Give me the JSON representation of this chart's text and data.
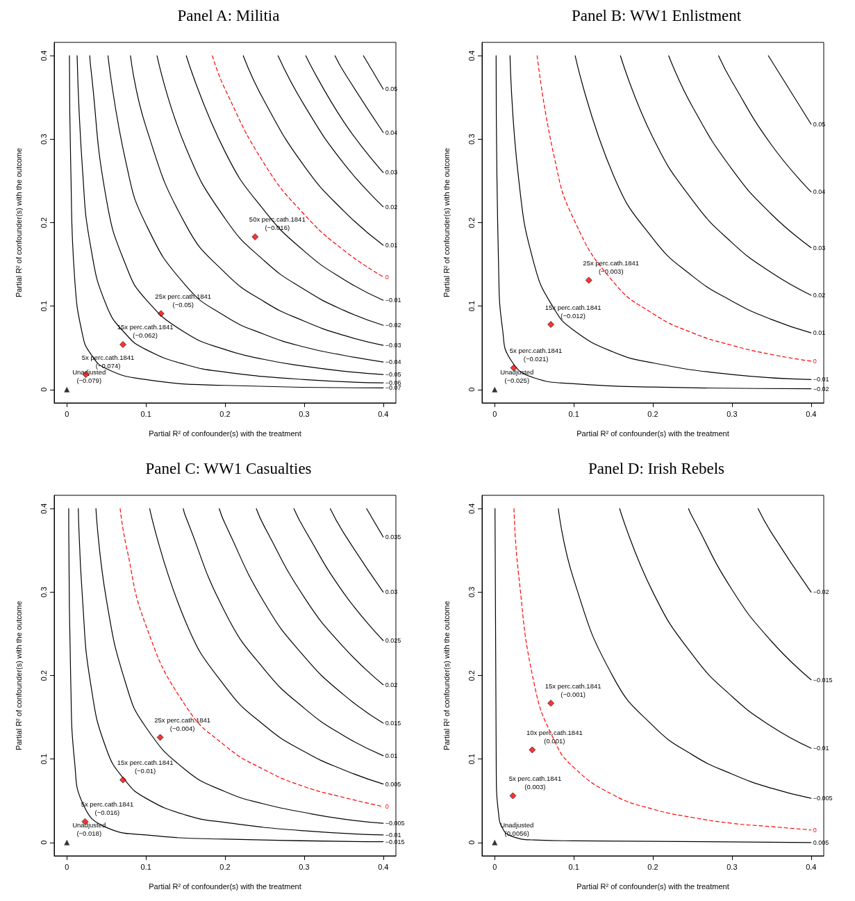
{
  "chart_data": [
    {
      "type": "line",
      "title": "Panel A: Militia",
      "xlabel": "Partial R² of confounder(s) with the treatment",
      "ylabel": "Partial R² of confounder(s) with the outcome",
      "xlim": [
        -0.016,
        0.416
      ],
      "ylim": [
        -0.016,
        0.416
      ],
      "xticks": [
        0,
        0.1,
        0.2,
        0.3,
        0.4
      ],
      "yticks": [
        0,
        0.1,
        0.2,
        0.3,
        0.4
      ],
      "grid": false,
      "legend": false,
      "series": [
        {
          "name": "0.05",
          "color": "#000000",
          "marker": "none",
          "x": [
            0.375,
            0.4
          ],
          "values": [
            0.4,
            0.36
          ]
        },
        {
          "name": "0.04",
          "color": "#000000",
          "marker": "none",
          "x": [
            0.339,
            0.35,
            0.4
          ],
          "values": [
            0.4,
            0.381,
            0.308
          ]
        },
        {
          "name": "0.03",
          "color": "#000000",
          "marker": "none",
          "x": [
            0.302,
            0.35,
            0.4
          ],
          "values": [
            0.4,
            0.321,
            0.26
          ]
        },
        {
          "name": "0.02",
          "color": "#000000",
          "marker": "none",
          "x": [
            0.267,
            0.3,
            0.35,
            0.4
          ],
          "values": [
            0.4,
            0.341,
            0.271,
            0.219
          ]
        },
        {
          "name": "0.01",
          "color": "#000000",
          "marker": "none",
          "x": [
            0.223,
            0.25,
            0.3,
            0.35,
            0.4
          ],
          "values": [
            0.4,
            0.345,
            0.268,
            0.214,
            0.173
          ]
        },
        {
          "name": "0",
          "color": "#ff0000",
          "marker": "none",
          "line_style": "dashed",
          "x": [
            0.184,
            0.2,
            0.25,
            0.3,
            0.35,
            0.4
          ],
          "values": [
            0.4,
            0.36,
            0.27,
            0.21,
            0.167,
            0.135
          ]
        },
        {
          "name": "−0.01",
          "color": "#000000",
          "marker": "none",
          "x": [
            0.151,
            0.2,
            0.25,
            0.3,
            0.35,
            0.4
          ],
          "values": [
            0.4,
            0.285,
            0.214,
            0.166,
            0.132,
            0.107
          ]
        },
        {
          "name": "−0.02",
          "color": "#000000",
          "marker": "none",
          "x": [
            0.114,
            0.15,
            0.2,
            0.25,
            0.3,
            0.35,
            0.4
          ],
          "values": [
            0.4,
            0.291,
            0.205,
            0.154,
            0.12,
            0.095,
            0.077
          ]
        },
        {
          "name": "−0.03",
          "color": "#000000",
          "marker": "none",
          "x": [
            0.0805,
            0.1,
            0.15,
            0.2,
            0.25,
            0.3,
            0.35,
            0.4
          ],
          "values": [
            0.4,
            0.315,
            0.198,
            0.14,
            0.105,
            0.082,
            0.065,
            0.053
          ]
        },
        {
          "name": "−0.04",
          "color": "#000000",
          "marker": "none",
          "x": [
            0.052,
            0.075,
            0.1,
            0.15,
            0.2,
            0.25,
            0.3,
            0.35,
            0.4
          ],
          "values": [
            0.4,
            0.271,
            0.198,
            0.125,
            0.088,
            0.066,
            0.051,
            0.041,
            0.033
          ]
        },
        {
          "name": "−0.05",
          "color": "#000000",
          "marker": "none",
          "x": [
            0.029,
            0.03,
            0.05,
            0.075,
            0.1,
            0.15,
            0.2,
            0.25,
            0.3,
            0.35,
            0.4
          ],
          "values": [
            0.4,
            0.388,
            0.228,
            0.148,
            0.108,
            0.068,
            0.048,
            0.036,
            0.028,
            0.022,
            0.018
          ]
        },
        {
          "name": "−0.06",
          "color": "#000000",
          "marker": "none",
          "x": [
            0.013,
            0.02,
            0.03,
            0.05,
            0.075,
            0.1,
            0.15,
            0.2,
            0.3,
            0.4
          ],
          "values": [
            0.4,
            0.261,
            0.172,
            0.101,
            0.066,
            0.048,
            0.03,
            0.021,
            0.012,
            0.008
          ]
        },
        {
          "name": "−0.07",
          "color": "#000000",
          "marker": "none",
          "x": [
            0.0033,
            0.005,
            0.01,
            0.02,
            0.03,
            0.05,
            0.1,
            0.2,
            0.4
          ],
          "values": [
            0.4,
            0.265,
            0.132,
            0.065,
            0.043,
            0.025,
            0.012,
            0.005,
            0.002
          ]
        },
        {
          "type": "scatter",
          "color": "#000000",
          "marker": "triangle",
          "x": [
            0
          ],
          "values": [
            0
          ]
        },
        {
          "type": "scatter",
          "color": "#ff0000",
          "marker": "diamond",
          "x": [
            0.024,
            0.071,
            0.119,
            0.238
          ],
          "values": [
            0.018,
            0.054,
            0.091,
            0.183
          ]
        }
      ],
      "annotations": [
        {
          "text": "Unadjusted\n(−0.079)",
          "x": 0,
          "y": 0
        },
        {
          "text": "5x perc.cath.1841\n(−0.074)",
          "x": 0.024,
          "y": 0.018
        },
        {
          "text": "15x perc.cath.1841\n(−0.062)",
          "x": 0.071,
          "y": 0.054
        },
        {
          "text": "25x perc.cath.1841\n(−0.05)",
          "x": 0.119,
          "y": 0.091
        },
        {
          "text": "50x perc.cath.1841\n(−0.016)",
          "x": 0.238,
          "y": 0.183
        }
      ]
    },
    {
      "type": "line",
      "title": "Panel B: WW1 Enlistment",
      "xlabel": "Partial R² of confounder(s) with the treatment",
      "ylabel": "Partial R² of confounder(s) with the outcome",
      "xlim": [
        -0.016,
        0.416
      ],
      "ylim": [
        -0.016,
        0.416
      ],
      "xticks": [
        0,
        0.1,
        0.2,
        0.3,
        0.4
      ],
      "yticks": [
        0,
        0.1,
        0.2,
        0.3,
        0.4
      ],
      "grid": false,
      "legend": false,
      "series": [
        {
          "name": "0.05",
          "color": "#000000",
          "marker": "none",
          "x": [
            0.346,
            0.4
          ],
          "values": [
            0.4,
            0.318
          ]
        },
        {
          "name": "0.04",
          "color": "#000000",
          "marker": "none",
          "x": [
            0.283,
            0.3,
            0.35,
            0.4
          ],
          "values": [
            0.4,
            0.369,
            0.293,
            0.237
          ]
        },
        {
          "name": "0.03",
          "color": "#000000",
          "marker": "none",
          "x": [
            0.22,
            0.25,
            0.3,
            0.35,
            0.4
          ],
          "values": [
            0.4,
            0.339,
            0.264,
            0.21,
            0.17
          ]
        },
        {
          "name": "0.02",
          "color": "#000000",
          "marker": "none",
          "x": [
            0.159,
            0.2,
            0.25,
            0.3,
            0.35,
            0.4
          ],
          "values": [
            0.4,
            0.302,
            0.227,
            0.176,
            0.14,
            0.113
          ]
        },
        {
          "name": "0.01",
          "color": "#000000",
          "marker": "none",
          "x": [
            0.1017,
            0.15,
            0.2,
            0.25,
            0.3,
            0.35,
            0.4
          ],
          "values": [
            0.4,
            0.257,
            0.181,
            0.136,
            0.106,
            0.084,
            0.068
          ]
        },
        {
          "name": "0",
          "color": "#ff0000",
          "marker": "none",
          "line_style": "dashed",
          "x": [
            0.0537,
            0.075,
            0.1,
            0.15,
            0.2,
            0.25,
            0.3,
            0.35,
            0.4
          ],
          "values": [
            0.4,
            0.28,
            0.204,
            0.129,
            0.091,
            0.068,
            0.053,
            0.042,
            0.034
          ]
        },
        {
          "name": "−0.01",
          "color": "#000000",
          "marker": "none",
          "x": [
            0.0194,
            0.03,
            0.05,
            0.075,
            0.1,
            0.15,
            0.2,
            0.3,
            0.4
          ],
          "values": [
            0.4,
            0.255,
            0.15,
            0.097,
            0.071,
            0.045,
            0.032,
            0.018,
            0.012
          ]
        },
        {
          "name": "−0.02",
          "color": "#000000",
          "marker": "none",
          "x": [
            0.0018,
            0.005,
            0.01,
            0.02,
            0.05,
            0.1,
            0.2,
            0.4
          ],
          "values": [
            0.4,
            0.145,
            0.072,
            0.036,
            0.014,
            0.007,
            0.003,
            0.001
          ]
        },
        {
          "type": "scatter",
          "color": "#000000",
          "marker": "triangle",
          "x": [
            0
          ],
          "values": [
            0
          ]
        },
        {
          "type": "scatter",
          "color": "#ff0000",
          "marker": "diamond",
          "x": [
            0.024,
            0.071,
            0.119
          ],
          "values": [
            0.026,
            0.078,
            0.131
          ]
        }
      ],
      "annotations": [
        {
          "text": "Unadjusted\n(−0.025)",
          "x": 0,
          "y": 0
        },
        {
          "text": "5x perc.cath.1841\n(−0.021)",
          "x": 0.024,
          "y": 0.026
        },
        {
          "text": "15x perc.cath.1841\n(−0.012)",
          "x": 0.071,
          "y": 0.078
        },
        {
          "text": "25x perc.cath.1841\n(−0.003)",
          "x": 0.119,
          "y": 0.131
        }
      ]
    },
    {
      "type": "line",
      "title": "Panel C: WW1 Casualties",
      "xlabel": "Partial R² of confounder(s) with the treatment",
      "ylabel": "Partial R² of confounder(s) with the outcome",
      "xlim": [
        -0.016,
        0.416
      ],
      "ylim": [
        -0.016,
        0.416
      ],
      "xticks": [
        0,
        0.1,
        0.2,
        0.3,
        0.4
      ],
      "yticks": [
        0,
        0.1,
        0.2,
        0.3,
        0.4
      ],
      "grid": false,
      "legend": false,
      "series": [
        {
          "name": "0.035",
          "color": "#000000",
          "marker": "none",
          "x": [
            0.379,
            0.4
          ],
          "values": [
            0.4,
            0.366
          ]
        },
        {
          "name": "0.03",
          "color": "#000000",
          "marker": "none",
          "x": [
            0.333,
            0.35,
            0.4
          ],
          "values": [
            0.4,
            0.371,
            0.3
          ]
        },
        {
          "name": "0.025",
          "color": "#000000",
          "marker": "none",
          "x": [
            0.287,
            0.3,
            0.35,
            0.4
          ],
          "values": [
            0.4,
            0.376,
            0.299,
            0.242
          ]
        },
        {
          "name": "0.02",
          "color": "#000000",
          "marker": "none",
          "x": [
            0.2395,
            0.25,
            0.3,
            0.35,
            0.4
          ],
          "values": [
            0.4,
            0.378,
            0.294,
            0.234,
            0.189
          ]
        },
        {
          "name": "0.015",
          "color": "#000000",
          "marker": "none",
          "x": [
            0.1927,
            0.2,
            0.25,
            0.3,
            0.35,
            0.4
          ],
          "values": [
            0.4,
            0.382,
            0.287,
            0.223,
            0.177,
            0.143
          ]
        },
        {
          "name": "0.01",
          "color": "#000000",
          "marker": "none",
          "x": [
            0.1472,
            0.15,
            0.2,
            0.25,
            0.3,
            0.35,
            0.4
          ],
          "values": [
            0.4,
            0.391,
            0.276,
            0.207,
            0.161,
            0.128,
            0.104
          ]
        },
        {
          "name": "0.005",
          "color": "#000000",
          "marker": "none",
          "x": [
            0.1047,
            0.15,
            0.2,
            0.25,
            0.3,
            0.35,
            0.4
          ],
          "values": [
            0.4,
            0.265,
            0.187,
            0.14,
            0.109,
            0.087,
            0.07
          ]
        },
        {
          "name": "0",
          "color": "#ff0000",
          "marker": "none",
          "line_style": "dashed",
          "x": [
            0.0674,
            0.075,
            0.1,
            0.15,
            0.2,
            0.25,
            0.3,
            0.35,
            0.4
          ],
          "values": [
            0.4,
            0.356,
            0.26,
            0.164,
            0.116,
            0.087,
            0.067,
            0.054,
            0.043
          ]
        },
        {
          "name": "−0.005",
          "color": "#000000",
          "marker": "none",
          "x": [
            0.0368,
            0.05,
            0.075,
            0.1,
            0.15,
            0.2,
            0.25,
            0.3,
            0.35,
            0.4
          ],
          "values": [
            0.4,
            0.291,
            0.189,
            0.138,
            0.087,
            0.061,
            0.046,
            0.036,
            0.028,
            0.023
          ]
        },
        {
          "name": "−0.01",
          "color": "#000000",
          "marker": "none",
          "x": [
            0.0145,
            0.02,
            0.03,
            0.05,
            0.075,
            0.1,
            0.15,
            0.2,
            0.3,
            0.4
          ],
          "values": [
            0.4,
            0.289,
            0.191,
            0.112,
            0.073,
            0.053,
            0.033,
            0.024,
            0.014,
            0.009
          ]
        },
        {
          "name": "−0.015",
          "color": "#000000",
          "marker": "none",
          "x": [
            0.0024,
            0.005,
            0.01,
            0.02,
            0.05,
            0.1,
            0.2,
            0.4
          ],
          "values": [
            0.4,
            0.191,
            0.095,
            0.047,
            0.018,
            0.009,
            0.004,
            0.001
          ]
        },
        {
          "type": "scatter",
          "color": "#000000",
          "marker": "triangle",
          "x": [
            0
          ],
          "values": [
            0
          ]
        },
        {
          "type": "scatter",
          "color": "#ff0000",
          "marker": "diamond",
          "x": [
            0.023,
            0.071,
            0.118
          ],
          "values": [
            0.025,
            0.075,
            0.126
          ]
        }
      ],
      "annotations": [
        {
          "text": "Unadjusted\n(−0.018)",
          "x": 0,
          "y": 0
        },
        {
          "text": "5x perc.cath.1841\n(−0.016)",
          "x": 0.023,
          "y": 0.025
        },
        {
          "text": "15x perc.cath.1841\n(−0.01)",
          "x": 0.071,
          "y": 0.075
        },
        {
          "text": "25x perc.cath.1841\n(−0.004)",
          "x": 0.118,
          "y": 0.126
        }
      ]
    },
    {
      "type": "line",
      "title": "Panel D: Irish Rebels",
      "xlabel": "Partial R² of confounder(s) with the treatment",
      "ylabel": "Partial R² of confounder(s) with the outcome",
      "xlim": [
        -0.016,
        0.416
      ],
      "ylim": [
        -0.016,
        0.416
      ],
      "xticks": [
        0,
        0.1,
        0.2,
        0.3,
        0.4
      ],
      "yticks": [
        0,
        0.1,
        0.2,
        0.3,
        0.4
      ],
      "grid": false,
      "legend": false,
      "series": [
        {
          "name": "−0.02",
          "color": "#000000",
          "marker": "none",
          "x": [
            0.333,
            0.35,
            0.4
          ],
          "values": [
            0.4,
            0.371,
            0.3
          ]
        },
        {
          "name": "−0.015",
          "color": "#000000",
          "marker": "none",
          "x": [
            0.245,
            0.25,
            0.3,
            0.35,
            0.4
          ],
          "values": [
            0.4,
            0.39,
            0.303,
            0.241,
            0.195
          ]
        },
        {
          "name": "−0.01",
          "color": "#000000",
          "marker": "none",
          "x": [
            0.158,
            0.2,
            0.25,
            0.3,
            0.35,
            0.4
          ],
          "values": [
            0.4,
            0.3,
            0.225,
            0.175,
            0.139,
            0.113
          ]
        },
        {
          "name": "−0.005",
          "color": "#000000",
          "marker": "none",
          "x": [
            0.0805,
            0.1,
            0.15,
            0.2,
            0.25,
            0.3,
            0.35,
            0.4
          ],
          "values": [
            0.4,
            0.315,
            0.198,
            0.14,
            0.105,
            0.082,
            0.065,
            0.053
          ]
        },
        {
          "name": "0",
          "color": "#ff0000",
          "marker": "none",
          "line_style": "dashed",
          "x": [
            0.0244,
            0.03,
            0.05,
            0.075,
            0.1,
            0.15,
            0.2,
            0.25,
            0.3,
            0.35,
            0.4
          ],
          "values": [
            0.4,
            0.323,
            0.19,
            0.123,
            0.09,
            0.057,
            0.04,
            0.03,
            0.023,
            0.019,
            0.015
          ]
        },
        {
          "name": "0.005",
          "color": "#000000",
          "marker": "none",
          "x": [
            0.0004,
            0.002,
            0.005,
            0.01,
            0.02,
            0.05,
            0.1,
            0.4
          ],
          "values": [
            0.4,
            0.085,
            0.034,
            0.017,
            0.008,
            0.003,
            0.002,
            0
          ]
        },
        {
          "type": "scatter",
          "color": "#000000",
          "marker": "triangle",
          "x": [
            0
          ],
          "values": [
            0
          ]
        },
        {
          "type": "scatter",
          "color": "#ff0000",
          "marker": "diamond",
          "x": [
            0.023,
            0.0475,
            0.071
          ],
          "values": [
            0.056,
            0.111,
            0.167
          ]
        }
      ],
      "annotations": [
        {
          "text": "Unadjusted\n(0.0056)",
          "x": 0,
          "y": 0
        },
        {
          "text": "5x perc.cath.1841\n(0.003)",
          "x": 0.023,
          "y": 0.056
        },
        {
          "text": "10x perc.cath.1841\n(0.001)",
          "x": 0.0475,
          "y": 0.111
        },
        {
          "text": "15x perc.cath.1841\n(−0.001)",
          "x": 0.071,
          "y": 0.167
        }
      ]
    }
  ]
}
